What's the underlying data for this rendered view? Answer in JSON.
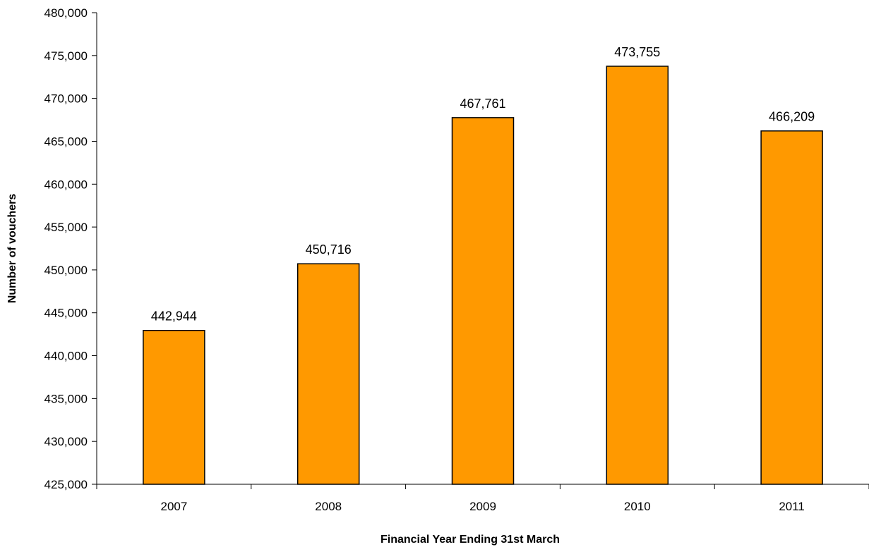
{
  "chart_data": {
    "type": "bar",
    "categories": [
      "2007",
      "2008",
      "2009",
      "2010",
      "2011"
    ],
    "values": [
      442944,
      450716,
      467761,
      473755,
      466209
    ],
    "data_labels": [
      "442,944",
      "450,716",
      "467,761",
      "473,755",
      "466,209"
    ],
    "xlabel": "Financial Year Ending 31st March",
    "ylabel": "Number of vouchers",
    "ylim": [
      425000,
      480000
    ],
    "yticks": [
      425000,
      430000,
      435000,
      440000,
      445000,
      450000,
      455000,
      460000,
      465000,
      470000,
      475000,
      480000
    ],
    "ytick_labels": [
      "425,000",
      "430,000",
      "435,000",
      "440,000",
      "445,000",
      "450,000",
      "455,000",
      "460,000",
      "465,000",
      "470,000",
      "475,000",
      "480,000"
    ],
    "grid": false,
    "legend": "none",
    "colors": {
      "bar_fill": "#FF9900",
      "bar_stroke": "#000000",
      "axis": "#000000"
    }
  }
}
